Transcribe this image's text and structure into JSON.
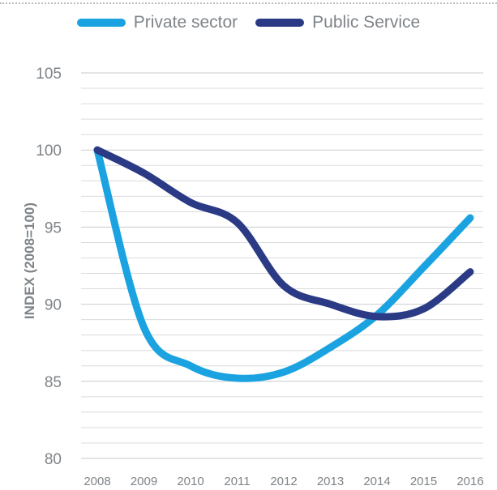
{
  "chart_data": {
    "type": "line",
    "title": "",
    "xlabel": "",
    "ylabel": "INDEX (2008=100)",
    "categories": [
      "2008",
      "2009",
      "2010",
      "2011",
      "2012",
      "2013",
      "2014",
      "2015",
      "2016"
    ],
    "yticks": [
      "80",
      "85",
      "90",
      "95",
      "100",
      "105"
    ],
    "ylim": [
      80,
      105
    ],
    "grid": true,
    "legend_position": "top-center",
    "series": [
      {
        "name": "Private sector",
        "color": "#1aa3e0",
        "values": [
          100,
          88.5,
          86.0,
          85.2,
          85.6,
          87.2,
          89.3,
          92.4,
          95.6
        ]
      },
      {
        "name": "Public Service",
        "color": "#2b3a85",
        "values": [
          100,
          98.5,
          96.6,
          95.3,
          91.2,
          90.0,
          89.2,
          89.7,
          92.1
        ]
      }
    ]
  }
}
